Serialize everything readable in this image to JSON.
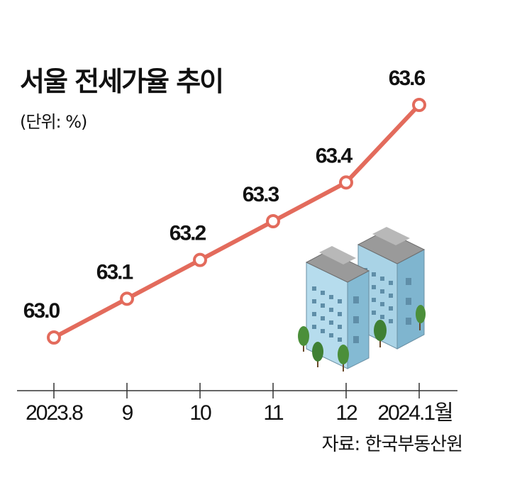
{
  "chart_data": {
    "type": "line",
    "title": "서울 전세가율 추이",
    "unit_note": "(단위: %)",
    "source": "자료: 한국부동산원",
    "categories": [
      "2023.8",
      "9",
      "10",
      "11",
      "12",
      "2024.1월"
    ],
    "series": [
      {
        "values": [
          63.0,
          63.1,
          63.2,
          63.3,
          63.4,
          63.6
        ],
        "color": "#e36b5c"
      }
    ],
    "data_labels": [
      "63.0",
      "63.1",
      "63.2",
      "63.3",
      "63.4",
      "63.6"
    ],
    "grid": false,
    "legend": "none"
  },
  "colors": {
    "line": "#e36b5c",
    "axis": "#333333",
    "building_face": "#a9d3e6",
    "building_roof": "#8f8f8f",
    "tree": "#4b8f3a"
  }
}
